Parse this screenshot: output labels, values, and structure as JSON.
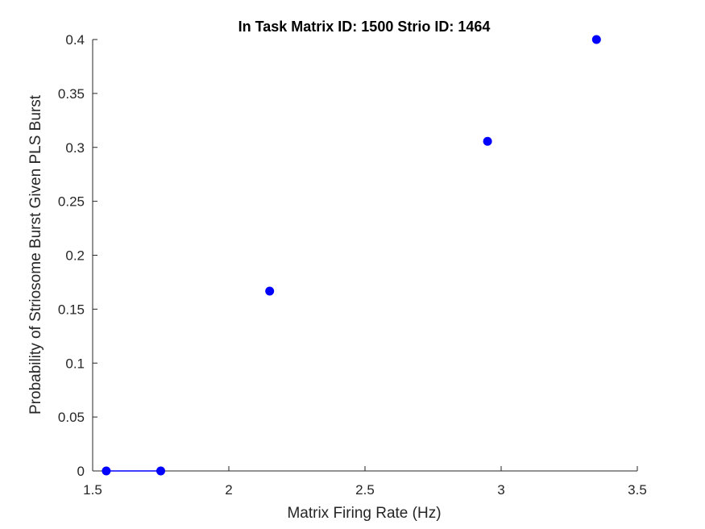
{
  "chart_data": {
    "type": "scatter",
    "title": "In Task Matrix ID: 1500 Strio ID: 1464",
    "xlabel": "Matrix Firing Rate (Hz)",
    "ylabel": "Probability of Striosome Burst Given PLS Burst",
    "xlim": [
      1.5,
      3.5
    ],
    "ylim": [
      0,
      0.4
    ],
    "xticks": [
      1.5,
      2,
      2.5,
      3,
      3.5
    ],
    "xtick_labels": [
      "1.5",
      "2",
      "2.5",
      "3",
      "3.5"
    ],
    "yticks": [
      0,
      0.05,
      0.1,
      0.15,
      0.2,
      0.25,
      0.3,
      0.35,
      0.4
    ],
    "ytick_labels": [
      "0",
      "0.05",
      "0.1",
      "0.15",
      "0.2",
      "0.25",
      "0.3",
      "0.35",
      "0.4"
    ],
    "grid": false,
    "color": "#0000ff",
    "x": [
      1.55,
      1.75,
      2.15,
      2.95,
      3.35
    ],
    "y": [
      0,
      0,
      0.1667,
      0.3056,
      0.4
    ],
    "segment": {
      "x": [
        1.55,
        1.75
      ],
      "y": [
        0,
        0
      ]
    }
  }
}
